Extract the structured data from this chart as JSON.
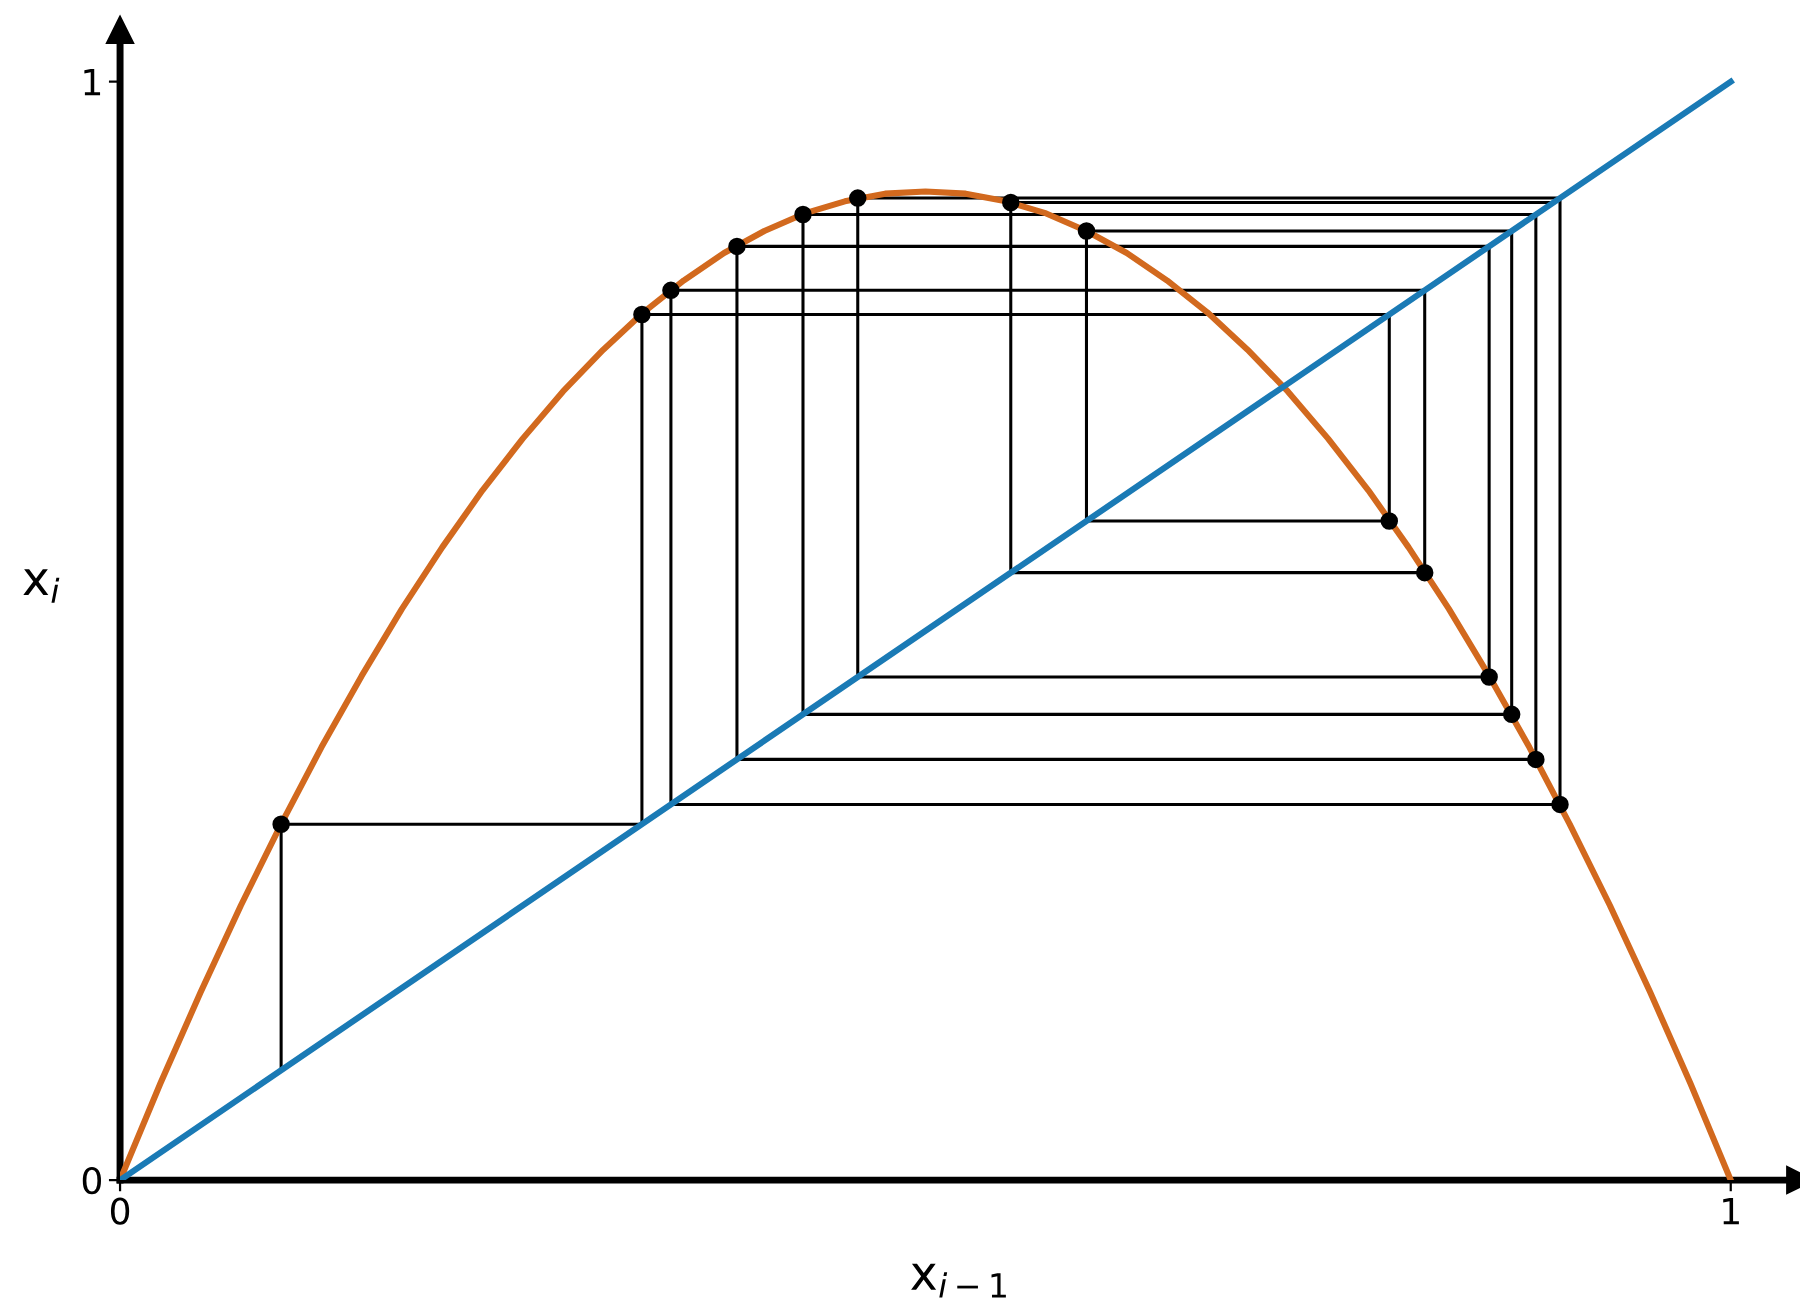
{
  "chart_data": {
    "type": "line",
    "xlabel": "x$_{i−1}$",
    "ylabel": "x$_{i}$",
    "xlim": [
      0,
      1.043
    ],
    "ylim": [
      0,
      1.047
    ],
    "xticks": [
      0,
      1
    ],
    "yticks": [
      0,
      1
    ],
    "grid": false,
    "legend": false,
    "series": [
      {
        "color": "#d2691e",
        "x": [
          0,
          0.025,
          0.05,
          0.075,
          0.1,
          0.125,
          0.15,
          0.175,
          0.2,
          0.225,
          0.25,
          0.275,
          0.3,
          0.325,
          0.35,
          0.375,
          0.4,
          0.425,
          0.45,
          0.475,
          0.5,
          0.525,
          0.55,
          0.575,
          0.6,
          0.625,
          0.65,
          0.675,
          0.7,
          0.725,
          0.75,
          0.775,
          0.8,
          0.825,
          0.85,
          0.875,
          0.9,
          0.925,
          0.95,
          0.975,
          1
        ],
        "values": [
          0,
          0.088,
          0.171,
          0.25,
          0.324,
          0.394,
          0.459,
          0.52,
          0.576,
          0.628,
          0.675,
          0.718,
          0.756,
          0.79,
          0.819,
          0.844,
          0.864,
          0.88,
          0.891,
          0.898,
          0.9,
          0.898,
          0.891,
          0.88,
          0.864,
          0.844,
          0.819,
          0.79,
          0.756,
          0.718,
          0.675,
          0.628,
          0.576,
          0.52,
          0.459,
          0.394,
          0.324,
          0.25,
          0.171,
          0.088,
          0
        ]
      },
      {
        "color": "#1a7ab5",
        "x": [
          0,
          1
        ],
        "values": [
          0,
          1
        ]
      },
      {
        "color": "#000000",
        "x": [
          0.1,
          0.1,
          0.324,
          0.324,
          0.788,
          0.788,
          0.6,
          0.6,
          0.864,
          0.864,
          0.424,
          0.424,
          0.879,
          0.879,
          0.383,
          0.383,
          0.85,
          0.85,
          0.458,
          0.458,
          0.894,
          0.894,
          0.342,
          0.342,
          0.81,
          0.81,
          0.553,
          0.553,
          0.89
        ],
        "values": [
          0.1,
          0.324,
          0.324,
          0.788,
          0.788,
          0.6,
          0.6,
          0.864,
          0.864,
          0.424,
          0.424,
          0.879,
          0.879,
          0.383,
          0.383,
          0.85,
          0.85,
          0.458,
          0.458,
          0.894,
          0.894,
          0.342,
          0.342,
          0.81,
          0.81,
          0.553,
          0.553,
          0.89,
          0.89
        ]
      },
      {
        "type": "scatter",
        "color": "#000000",
        "marker": "circle",
        "x": [
          0.1,
          0.324,
          0.788,
          0.6,
          0.864,
          0.424,
          0.879,
          0.383,
          0.85,
          0.458,
          0.894,
          0.342,
          0.81,
          0.553
        ],
        "values": [
          0.324,
          0.788,
          0.6,
          0.864,
          0.424,
          0.879,
          0.383,
          0.85,
          0.458,
          0.894,
          0.342,
          0.81,
          0.553,
          0.89
        ]
      }
    ]
  }
}
